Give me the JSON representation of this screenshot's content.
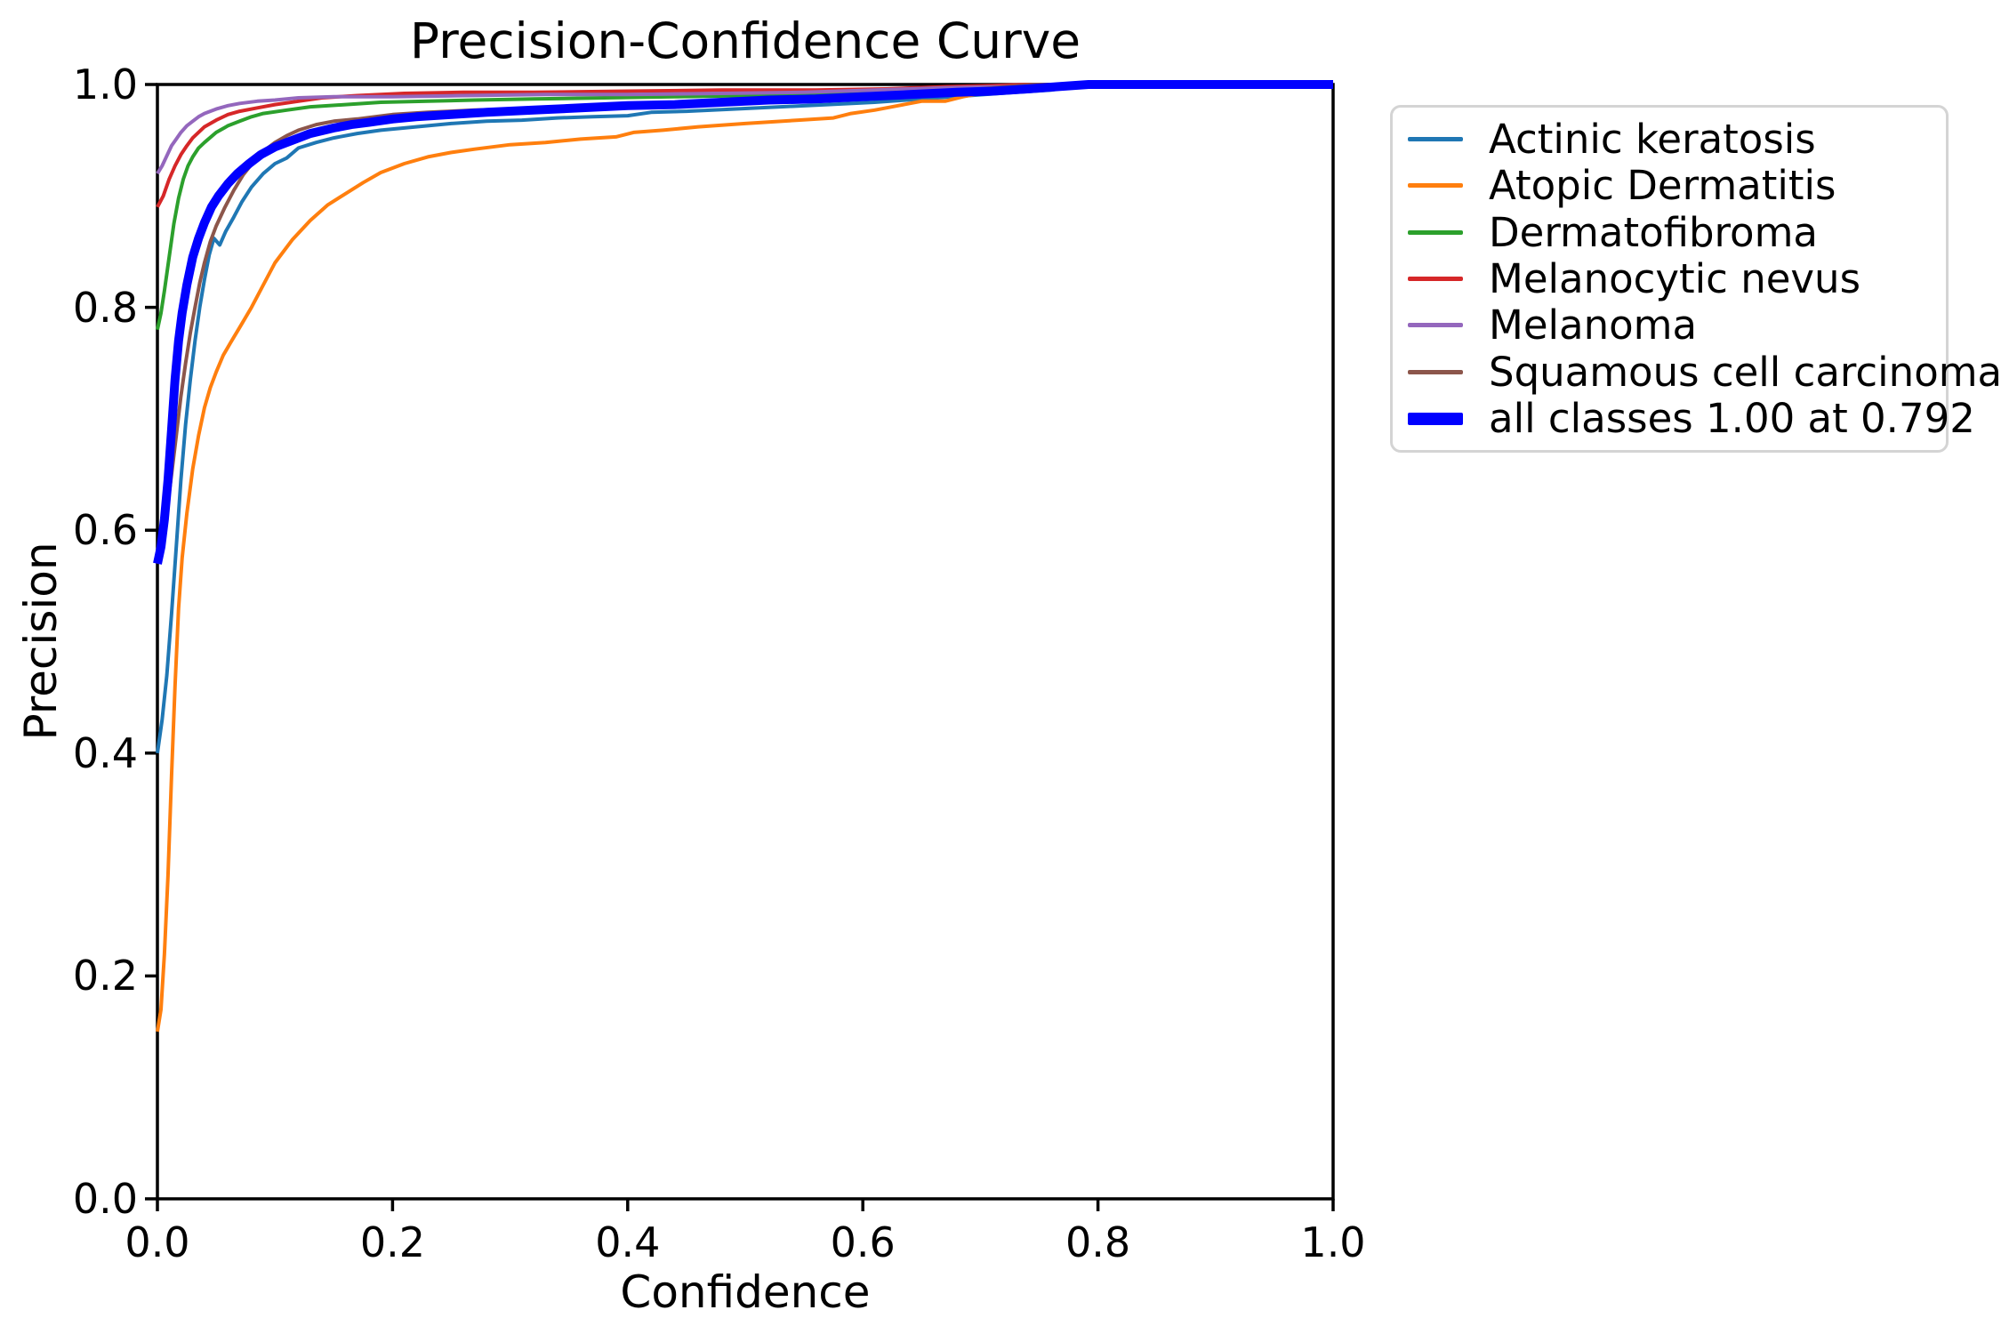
{
  "chart_data": {
    "type": "line",
    "title": "Precision-Confidence Curve",
    "xlabel": "Confidence",
    "ylabel": "Precision",
    "xlim": [
      0.0,
      1.0
    ],
    "ylim": [
      0.0,
      1.0
    ],
    "x_ticks": [
      0.0,
      0.2,
      0.4,
      0.6,
      0.8,
      1.0
    ],
    "y_ticks": [
      0.0,
      0.2,
      0.4,
      0.6,
      0.8,
      1.0
    ],
    "x_tick_labels": [
      "0.0",
      "0.2",
      "0.4",
      "0.6",
      "0.8",
      "1.0"
    ],
    "y_tick_labels": [
      "0.0",
      "0.2",
      "0.4",
      "0.6",
      "0.8",
      "1.0"
    ],
    "grid": false,
    "frame_color": "#000000",
    "background": "#ffffff",
    "legend_position": "outside-upper-right",
    "annotation": "all classes curve reaches precision 1.00 at confidence 0.792",
    "series": [
      {
        "name": "Actinic keratosis",
        "color": "#1f77b4",
        "width": 4,
        "points": [
          [
            0,
            0.4
          ],
          [
            0.004,
            0.43
          ],
          [
            0.008,
            0.47
          ],
          [
            0.012,
            0.525
          ],
          [
            0.016,
            0.585
          ],
          [
            0.02,
            0.645
          ],
          [
            0.024,
            0.695
          ],
          [
            0.028,
            0.735
          ],
          [
            0.032,
            0.77
          ],
          [
            0.036,
            0.8
          ],
          [
            0.04,
            0.825
          ],
          [
            0.044,
            0.847
          ],
          [
            0.048,
            0.862
          ],
          [
            0.053,
            0.856
          ],
          [
            0.058,
            0.868
          ],
          [
            0.065,
            0.881
          ],
          [
            0.072,
            0.895
          ],
          [
            0.08,
            0.908
          ],
          [
            0.09,
            0.92
          ],
          [
            0.1,
            0.929
          ],
          [
            0.11,
            0.934
          ],
          [
            0.12,
            0.943
          ],
          [
            0.135,
            0.948
          ],
          [
            0.15,
            0.952
          ],
          [
            0.17,
            0.956
          ],
          [
            0.19,
            0.959
          ],
          [
            0.22,
            0.962
          ],
          [
            0.25,
            0.965
          ],
          [
            0.28,
            0.967
          ],
          [
            0.31,
            0.968
          ],
          [
            0.34,
            0.97
          ],
          [
            0.37,
            0.971
          ],
          [
            0.4,
            0.972
          ],
          [
            0.42,
            0.975
          ],
          [
            0.45,
            0.976
          ],
          [
            0.49,
            0.978
          ],
          [
            0.53,
            0.98
          ],
          [
            0.57,
            0.982
          ],
          [
            0.61,
            0.984
          ],
          [
            0.65,
            0.987
          ],
          [
            0.69,
            0.99
          ],
          [
            0.73,
            0.993
          ],
          [
            0.76,
            0.995
          ],
          [
            0.79,
            1.0
          ],
          [
            1.0,
            1.0
          ]
        ]
      },
      {
        "name": "Atopic Dermatitis",
        "color": "#ff7f0e",
        "width": 4,
        "points": [
          [
            0,
            0.15
          ],
          [
            0.003,
            0.17
          ],
          [
            0.006,
            0.22
          ],
          [
            0.009,
            0.29
          ],
          [
            0.012,
            0.38
          ],
          [
            0.015,
            0.46
          ],
          [
            0.018,
            0.53
          ],
          [
            0.021,
            0.575
          ],
          [
            0.025,
            0.615
          ],
          [
            0.03,
            0.655
          ],
          [
            0.035,
            0.685
          ],
          [
            0.04,
            0.71
          ],
          [
            0.045,
            0.728
          ],
          [
            0.05,
            0.742
          ],
          [
            0.056,
            0.757
          ],
          [
            0.062,
            0.768
          ],
          [
            0.07,
            0.782
          ],
          [
            0.08,
            0.8
          ],
          [
            0.09,
            0.82
          ],
          [
            0.1,
            0.84
          ],
          [
            0.115,
            0.861
          ],
          [
            0.13,
            0.878
          ],
          [
            0.145,
            0.892
          ],
          [
            0.16,
            0.902
          ],
          [
            0.175,
            0.912
          ],
          [
            0.19,
            0.921
          ],
          [
            0.21,
            0.929
          ],
          [
            0.23,
            0.935
          ],
          [
            0.25,
            0.939
          ],
          [
            0.27,
            0.942
          ],
          [
            0.3,
            0.946
          ],
          [
            0.33,
            0.948
          ],
          [
            0.36,
            0.951
          ],
          [
            0.39,
            0.953
          ],
          [
            0.405,
            0.957
          ],
          [
            0.43,
            0.959
          ],
          [
            0.46,
            0.962
          ],
          [
            0.5,
            0.965
          ],
          [
            0.545,
            0.968
          ],
          [
            0.575,
            0.97
          ],
          [
            0.59,
            0.974
          ],
          [
            0.61,
            0.977
          ],
          [
            0.63,
            0.981
          ],
          [
            0.65,
            0.985
          ],
          [
            0.67,
            0.985
          ],
          [
            0.685,
            0.989
          ],
          [
            0.7,
            0.992
          ],
          [
            0.72,
            0.995
          ],
          [
            0.735,
            0.997
          ],
          [
            0.75,
            1.0
          ],
          [
            1.0,
            1.0
          ]
        ]
      },
      {
        "name": "Dermatofibroma",
        "color": "#2ca02c",
        "width": 4,
        "points": [
          [
            0,
            0.78
          ],
          [
            0.003,
            0.795
          ],
          [
            0.006,
            0.815
          ],
          [
            0.01,
            0.845
          ],
          [
            0.014,
            0.875
          ],
          [
            0.018,
            0.898
          ],
          [
            0.022,
            0.915
          ],
          [
            0.026,
            0.927
          ],
          [
            0.03,
            0.935
          ],
          [
            0.035,
            0.943
          ],
          [
            0.04,
            0.948
          ],
          [
            0.05,
            0.957
          ],
          [
            0.06,
            0.963
          ],
          [
            0.07,
            0.967
          ],
          [
            0.08,
            0.971
          ],
          [
            0.09,
            0.974
          ],
          [
            0.11,
            0.977
          ],
          [
            0.13,
            0.98
          ],
          [
            0.16,
            0.982
          ],
          [
            0.19,
            0.984
          ],
          [
            0.23,
            0.985
          ],
          [
            0.27,
            0.986
          ],
          [
            0.32,
            0.987
          ],
          [
            0.38,
            0.988
          ],
          [
            0.44,
            0.989
          ],
          [
            0.5,
            0.99
          ],
          [
            0.56,
            0.991
          ],
          [
            0.62,
            0.992
          ],
          [
            0.67,
            0.995
          ],
          [
            0.72,
            0.997
          ],
          [
            0.765,
            1.0
          ],
          [
            1.0,
            1.0
          ]
        ]
      },
      {
        "name": "Melanocytic nevus",
        "color": "#d62728",
        "width": 4,
        "points": [
          [
            0,
            0.89
          ],
          [
            0.005,
            0.9
          ],
          [
            0.01,
            0.915
          ],
          [
            0.015,
            0.927
          ],
          [
            0.02,
            0.937
          ],
          [
            0.025,
            0.945
          ],
          [
            0.03,
            0.952
          ],
          [
            0.04,
            0.962
          ],
          [
            0.05,
            0.968
          ],
          [
            0.06,
            0.973
          ],
          [
            0.07,
            0.976
          ],
          [
            0.085,
            0.979
          ],
          [
            0.1,
            0.982
          ],
          [
            0.12,
            0.985
          ],
          [
            0.14,
            0.988
          ],
          [
            0.17,
            0.99
          ],
          [
            0.21,
            0.992
          ],
          [
            0.26,
            0.993
          ],
          [
            0.32,
            0.993
          ],
          [
            0.4,
            0.994
          ],
          [
            0.48,
            0.995
          ],
          [
            0.56,
            0.995
          ],
          [
            0.62,
            0.996
          ],
          [
            0.67,
            0.998
          ],
          [
            0.71,
            0.999
          ],
          [
            0.74,
            1.0
          ],
          [
            1.0,
            1.0
          ]
        ]
      },
      {
        "name": "Melanoma",
        "color": "#9467bd",
        "width": 4,
        "points": [
          [
            0,
            0.92
          ],
          [
            0.004,
            0.927
          ],
          [
            0.008,
            0.936
          ],
          [
            0.012,
            0.945
          ],
          [
            0.016,
            0.951
          ],
          [
            0.02,
            0.957
          ],
          [
            0.025,
            0.963
          ],
          [
            0.03,
            0.967
          ],
          [
            0.035,
            0.971
          ],
          [
            0.04,
            0.974
          ],
          [
            0.05,
            0.978
          ],
          [
            0.06,
            0.981
          ],
          [
            0.07,
            0.983
          ],
          [
            0.085,
            0.985
          ],
          [
            0.1,
            0.986
          ],
          [
            0.12,
            0.988
          ],
          [
            0.15,
            0.989
          ],
          [
            0.2,
            0.989
          ],
          [
            0.26,
            0.99
          ],
          [
            0.33,
            0.991
          ],
          [
            0.4,
            0.991
          ],
          [
            0.48,
            0.992
          ],
          [
            0.55,
            0.993
          ],
          [
            0.61,
            0.995
          ],
          [
            0.67,
            0.997
          ],
          [
            0.72,
            0.998
          ],
          [
            0.765,
            1.0
          ],
          [
            1.0,
            1.0
          ]
        ]
      },
      {
        "name": "Squamous cell carcinoma",
        "color": "#8c564b",
        "width": 4,
        "points": [
          [
            0,
            0.57
          ],
          [
            0.004,
            0.59
          ],
          [
            0.008,
            0.617
          ],
          [
            0.012,
            0.65
          ],
          [
            0.016,
            0.685
          ],
          [
            0.02,
            0.72
          ],
          [
            0.024,
            0.75
          ],
          [
            0.028,
            0.777
          ],
          [
            0.032,
            0.8
          ],
          [
            0.036,
            0.822
          ],
          [
            0.04,
            0.84
          ],
          [
            0.045,
            0.859
          ],
          [
            0.05,
            0.873
          ],
          [
            0.057,
            0.889
          ],
          [
            0.065,
            0.905
          ],
          [
            0.073,
            0.919
          ],
          [
            0.082,
            0.931
          ],
          [
            0.09,
            0.94
          ],
          [
            0.1,
            0.948
          ],
          [
            0.11,
            0.954
          ],
          [
            0.12,
            0.959
          ],
          [
            0.135,
            0.964
          ],
          [
            0.15,
            0.967
          ],
          [
            0.17,
            0.969
          ],
          [
            0.2,
            0.973
          ],
          [
            0.23,
            0.975
          ],
          [
            0.27,
            0.977
          ],
          [
            0.31,
            0.978
          ],
          [
            0.36,
            0.98
          ],
          [
            0.41,
            0.981
          ],
          [
            0.46,
            0.983
          ],
          [
            0.52,
            0.985
          ],
          [
            0.58,
            0.988
          ],
          [
            0.64,
            0.992
          ],
          [
            0.7,
            0.996
          ],
          [
            0.745,
            1.0
          ],
          [
            1.0,
            1.0
          ]
        ]
      },
      {
        "name": "all classes 1.00 at 0.792",
        "color": "#0000ff",
        "width": 10,
        "points": [
          [
            0,
            0.57
          ],
          [
            0.003,
            0.585
          ],
          [
            0.006,
            0.61
          ],
          [
            0.009,
            0.645
          ],
          [
            0.012,
            0.69
          ],
          [
            0.015,
            0.735
          ],
          [
            0.018,
            0.77
          ],
          [
            0.021,
            0.795
          ],
          [
            0.025,
            0.82
          ],
          [
            0.03,
            0.845
          ],
          [
            0.035,
            0.862
          ],
          [
            0.04,
            0.876
          ],
          [
            0.046,
            0.89
          ],
          [
            0.052,
            0.9
          ],
          [
            0.06,
            0.911
          ],
          [
            0.068,
            0.92
          ],
          [
            0.078,
            0.929
          ],
          [
            0.088,
            0.937
          ],
          [
            0.1,
            0.944
          ],
          [
            0.115,
            0.95
          ],
          [
            0.13,
            0.956
          ],
          [
            0.15,
            0.961
          ],
          [
            0.165,
            0.964
          ],
          [
            0.18,
            0.966
          ],
          [
            0.2,
            0.969
          ],
          [
            0.22,
            0.971
          ],
          [
            0.25,
            0.973
          ],
          [
            0.28,
            0.975
          ],
          [
            0.32,
            0.977
          ],
          [
            0.36,
            0.979
          ],
          [
            0.4,
            0.981
          ],
          [
            0.44,
            0.982
          ],
          [
            0.48,
            0.984
          ],
          [
            0.52,
            0.986
          ],
          [
            0.56,
            0.987
          ],
          [
            0.6,
            0.989
          ],
          [
            0.64,
            0.991
          ],
          [
            0.68,
            0.993
          ],
          [
            0.71,
            0.994
          ],
          [
            0.74,
            0.996
          ],
          [
            0.765,
            0.998
          ],
          [
            0.792,
            1.0
          ],
          [
            1.0,
            1.0
          ]
        ]
      }
    ]
  }
}
